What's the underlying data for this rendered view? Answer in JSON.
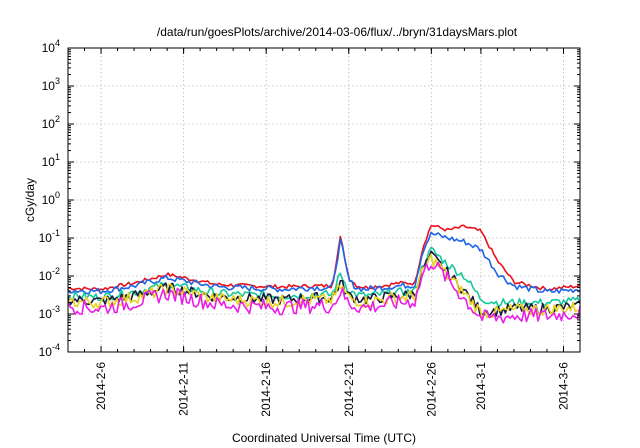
{
  "chart_data": {
    "type": "line",
    "title": "/data/run/goesPlots/archive/2014-03-06/flux/../bryn/31daysMars.plot",
    "xlabel": "Coordinated Universal Time (UTC)",
    "ylabel": "cGy/day",
    "yscale": "log",
    "ylim": [
      0.0001,
      10000
    ],
    "xlim": [
      "2014-02-04",
      "2014-03-07"
    ],
    "grid": true,
    "legend": "none",
    "x_ticks": [
      "2014-2-6",
      "2014-2-11",
      "2014-2-16",
      "2014-2-21",
      "2014-2-26",
      "2014-3-1",
      "2014-3-6"
    ],
    "y_ticks": [
      {
        "base": "10",
        "exp": "-4"
      },
      {
        "base": "10",
        "exp": "-3"
      },
      {
        "base": "10",
        "exp": "-2"
      },
      {
        "base": "10",
        "exp": "-1"
      },
      {
        "base": "10",
        "exp": "0"
      },
      {
        "base": "10",
        "exp": "1"
      },
      {
        "base": "10",
        "exp": "2"
      },
      {
        "base": "10",
        "exp": "3"
      },
      {
        "base": "10",
        "exp": "4"
      }
    ],
    "x": [
      "2014-02-04",
      "2014-02-06",
      "2014-02-08",
      "2014-02-10",
      "2014-02-11",
      "2014-02-13",
      "2014-02-15",
      "2014-02-17",
      "2014-02-19",
      "2014-02-20",
      "2014-02-20 12:00",
      "2014-02-21",
      "2014-02-21 12:00",
      "2014-02-22",
      "2014-02-23",
      "2014-02-24",
      "2014-02-25",
      "2014-02-25 12:00",
      "2014-02-26",
      "2014-02-27",
      "2014-02-28",
      "2014-03-01",
      "2014-03-02",
      "2014-03-03",
      "2014-03-05",
      "2014-03-07"
    ],
    "series": [
      {
        "color": "#e8121f",
        "values": [
          0.0048,
          0.0045,
          0.0065,
          0.011,
          0.009,
          0.006,
          0.0055,
          0.0052,
          0.0055,
          0.0055,
          0.11,
          0.009,
          0.0055,
          0.005,
          0.0055,
          0.0065,
          0.0065,
          0.06,
          0.22,
          0.16,
          0.2,
          0.15,
          0.025,
          0.007,
          0.0045,
          0.0055
        ]
      },
      {
        "color": "#1e64e6",
        "values": [
          0.0042,
          0.004,
          0.0055,
          0.009,
          0.0075,
          0.0052,
          0.0048,
          0.0045,
          0.005,
          0.0048,
          0.09,
          0.0075,
          0.0048,
          0.0045,
          0.005,
          0.0055,
          0.0058,
          0.05,
          0.13,
          0.1,
          0.08,
          0.05,
          0.012,
          0.0055,
          0.0038,
          0.0045
        ]
      },
      {
        "color": "#15c8a0",
        "values": [
          0.003,
          0.0028,
          0.0038,
          0.006,
          0.005,
          0.0035,
          0.0032,
          0.003,
          0.0033,
          0.0032,
          0.012,
          0.004,
          0.0032,
          0.003,
          0.0033,
          0.0037,
          0.004,
          0.02,
          0.05,
          0.02,
          0.01,
          0.0025,
          0.002,
          0.002,
          0.002,
          0.0022
        ]
      },
      {
        "color": "#1a1a3c",
        "values": [
          0.0024,
          0.0022,
          0.003,
          0.005,
          0.0042,
          0.0028,
          0.0026,
          0.0024,
          0.0027,
          0.0026,
          0.007,
          0.003,
          0.0026,
          0.0024,
          0.0027,
          0.003,
          0.0033,
          0.016,
          0.035,
          0.012,
          0.004,
          0.0012,
          0.0012,
          0.0014,
          0.0014,
          0.0016
        ]
      },
      {
        "color": "#e8d21e",
        "values": [
          0.0021,
          0.002,
          0.0027,
          0.0045,
          0.0038,
          0.0025,
          0.0023,
          0.0021,
          0.0024,
          0.0023,
          0.0055,
          0.0026,
          0.0023,
          0.0021,
          0.0024,
          0.0027,
          0.003,
          0.014,
          0.03,
          0.01,
          0.0035,
          0.0011,
          0.0011,
          0.0013,
          0.0013,
          0.0015
        ]
      },
      {
        "color": "#ea1ee8",
        "values": [
          0.0016,
          0.0014,
          0.002,
          0.0035,
          0.0028,
          0.0018,
          0.0016,
          0.0015,
          0.0017,
          0.0016,
          0.004,
          0.0019,
          0.0016,
          0.0015,
          0.0017,
          0.002,
          0.0022,
          0.012,
          0.025,
          0.008,
          0.0025,
          0.0008,
          0.0008,
          0.0009,
          0.0009,
          0.0011
        ]
      }
    ]
  }
}
